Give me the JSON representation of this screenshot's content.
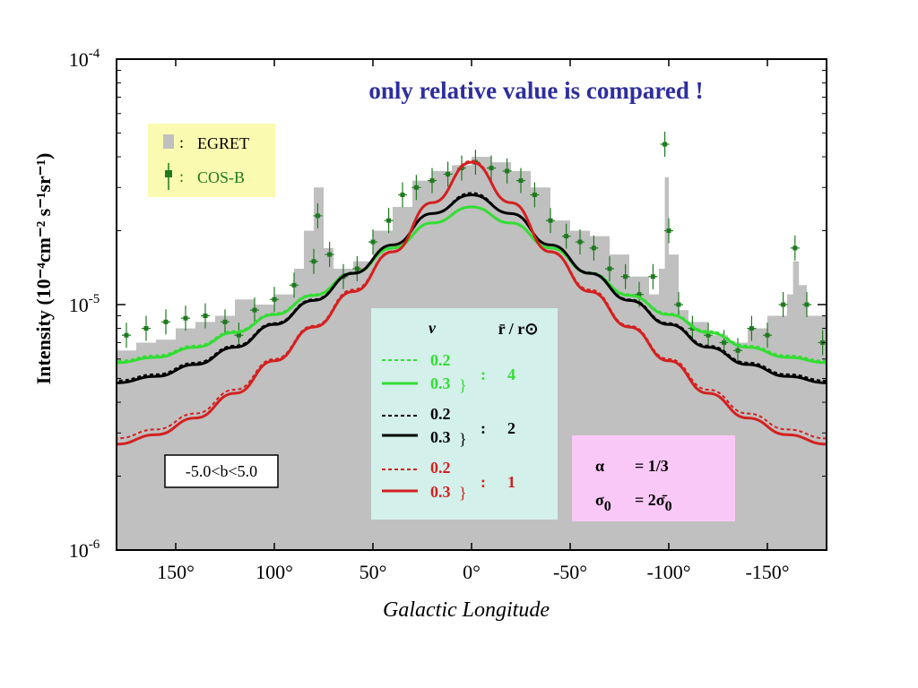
{
  "chart_data": {
    "type": "line",
    "title": "only relative value is compared !",
    "xlabel": "Galactic Longitude",
    "ylabel": "Intensity (10⁻⁴cm⁻² s⁻¹sr⁻¹)",
    "x_reversed": true,
    "xlim": [
      180,
      -180
    ],
    "ylim": [
      1e-06,
      0.0001
    ],
    "y_scale": "log",
    "x_ticks": [
      {
        "value": 150,
        "label": "150°"
      },
      {
        "value": 100,
        "label": "100°"
      },
      {
        "value": 50,
        "label": "50°"
      },
      {
        "value": 0,
        "label": "0°"
      },
      {
        "value": -50,
        "label": "-50°"
      },
      {
        "value": -100,
        "label": "-100°"
      },
      {
        "value": -150,
        "label": "-150°"
      }
    ],
    "y_ticks": [
      {
        "value": 0.0001,
        "base": "10",
        "exp": "-4"
      },
      {
        "value": 1e-05,
        "base": "10",
        "exp": "-5"
      },
      {
        "value": 1e-06,
        "base": "10",
        "exp": "-6"
      }
    ],
    "x": [
      -180,
      -160,
      -140,
      -120,
      -100,
      -80,
      -60,
      -40,
      -20,
      0,
      20,
      40,
      60,
      80,
      100,
      120,
      140,
      160,
      180
    ],
    "series": [
      {
        "group": "4",
        "nu": "0.2",
        "style": "dashed",
        "color": "#33dd33",
        "values": [
          5.9e-06,
          6.2e-06,
          6.8e-06,
          7.8e-06,
          9.2e-06,
          1.1e-05,
          1.35e-05,
          1.7e-05,
          2.15e-05,
          2.5e-05,
          2.15e-05,
          1.7e-05,
          1.35e-05,
          1.1e-05,
          9.2e-06,
          7.8e-06,
          6.8e-06,
          6.2e-06,
          5.9e-06
        ]
      },
      {
        "group": "4",
        "nu": "0.3",
        "style": "solid",
        "color": "#33dd33",
        "values": [
          5.8e-06,
          6.1e-06,
          6.7e-06,
          7.7e-06,
          9.1e-06,
          1.09e-05,
          1.34e-05,
          1.7e-05,
          2.15e-05,
          2.5e-05,
          2.15e-05,
          1.7e-05,
          1.34e-05,
          1.09e-05,
          9.1e-06,
          7.7e-06,
          6.7e-06,
          6.1e-06,
          5.8e-06
        ]
      },
      {
        "group": "2",
        "nu": "0.2",
        "style": "dashed",
        "color": "#000000",
        "values": [
          4.9e-06,
          5.2e-06,
          5.8e-06,
          6.8e-06,
          8.4e-06,
          1.05e-05,
          1.35e-05,
          1.75e-05,
          2.35e-05,
          2.85e-05,
          2.35e-05,
          1.75e-05,
          1.35e-05,
          1.05e-05,
          8.4e-06,
          6.8e-06,
          5.8e-06,
          5.2e-06,
          4.9e-06
        ]
      },
      {
        "group": "2",
        "nu": "0.3",
        "style": "solid",
        "color": "#000000",
        "values": [
          4.8e-06,
          5.1e-06,
          5.7e-06,
          6.7e-06,
          8.3e-06,
          1.04e-05,
          1.34e-05,
          1.75e-05,
          2.35e-05,
          2.8e-05,
          2.35e-05,
          1.75e-05,
          1.34e-05,
          1.04e-05,
          8.3e-06,
          6.7e-06,
          5.7e-06,
          5.1e-06,
          4.8e-06
        ]
      },
      {
        "group": "1",
        "nu": "0.2",
        "style": "dashed",
        "color": "#d42020",
        "values": [
          2.85e-06,
          3.1e-06,
          3.6e-06,
          4.5e-06,
          6e-06,
          8.2e-06,
          1.15e-05,
          1.65e-05,
          2.6e-05,
          3.85e-05,
          2.6e-05,
          1.65e-05,
          1.15e-05,
          8.2e-06,
          6e-06,
          4.5e-06,
          3.6e-06,
          3.1e-06,
          2.85e-06
        ]
      },
      {
        "group": "1",
        "nu": "0.3",
        "style": "solid",
        "color": "#d42020",
        "values": [
          2.7e-06,
          2.95e-06,
          3.45e-06,
          4.35e-06,
          5.9e-06,
          8.1e-06,
          1.13e-05,
          1.64e-05,
          2.6e-05,
          3.8e-05,
          2.6e-05,
          1.64e-05,
          1.13e-05,
          8.1e-06,
          5.9e-06,
          4.35e-06,
          3.45e-06,
          2.95e-06,
          2.7e-06
        ]
      }
    ],
    "egret": {
      "name": "EGRET",
      "color": "#c0c0c0",
      "x": [
        180,
        170,
        160,
        150,
        140,
        130,
        120,
        110,
        100,
        90,
        85,
        80,
        75,
        70,
        60,
        50,
        40,
        30,
        20,
        10,
        0,
        -10,
        -20,
        -30,
        -40,
        -50,
        -60,
        -70,
        -80,
        -90,
        -95,
        -98,
        -100,
        -105,
        -110,
        -120,
        -130,
        -140,
        -150,
        -160,
        -163,
        -166,
        -170,
        -180
      ],
      "values": [
        6.5e-06,
        7e-06,
        7.2e-06,
        8e-06,
        8.5e-06,
        9e-06,
        1.05e-05,
        1e-05,
        1.1e-05,
        1.4e-05,
        2e-05,
        3e-05,
        1.7e-05,
        1.4e-05,
        1.5e-05,
        2e-05,
        2.5e-05,
        3.2e-05,
        3.5e-05,
        3.7e-05,
        4e-05,
        3.8e-05,
        3.5e-05,
        3e-05,
        2.2e-05,
        2e-05,
        1.9e-05,
        1.6e-05,
        1.3e-05,
        1.1e-05,
        1.4e-05,
        3.3e-05,
        1.6e-05,
        9.5e-06,
        8.5e-06,
        7.5e-06,
        7e-06,
        8e-06,
        9e-06,
        1.1e-05,
        1.5e-05,
        1.2e-05,
        9e-06,
        6.5e-06
      ]
    },
    "cosb": {
      "name": "COS-B",
      "color": "#1f7a1f",
      "x": [
        175,
        165,
        155,
        145,
        135,
        125,
        118,
        110,
        100,
        90,
        80,
        78,
        72,
        65,
        58,
        50,
        42,
        35,
        28,
        20,
        12,
        5,
        -2,
        -10,
        -18,
        -25,
        -32,
        -40,
        -48,
        -55,
        -62,
        -70,
        -78,
        -85,
        -92,
        -98,
        -100,
        -105,
        -112,
        -120,
        -128,
        -135,
        -142,
        -150,
        -158,
        -164,
        -170,
        -178
      ],
      "values": [
        7.5e-06,
        8e-06,
        8.5e-06,
        8.8e-06,
        9e-06,
        8.5e-06,
        7.5e-06,
        9.5e-06,
        1.05e-05,
        1.2e-05,
        1.5e-05,
        2.3e-05,
        1.6e-05,
        1.3e-05,
        1.4e-05,
        1.8e-05,
        2.2e-05,
        2.8e-05,
        3e-05,
        3.2e-05,
        3.4e-05,
        3.6e-05,
        3.8e-05,
        3.6e-05,
        3.5e-05,
        3.2e-05,
        2.8e-05,
        2.2e-05,
        1.9e-05,
        1.8e-05,
        1.7e-05,
        1.4e-05,
        1.3e-05,
        1.1e-05,
        1.3e-05,
        4.5e-05,
        2e-05,
        1e-05,
        8e-06,
        7.5e-06,
        7e-06,
        6.5e-06,
        8e-06,
        7.5e-06,
        1e-05,
        1.7e-05,
        1e-05,
        7e-06
      ]
    }
  },
  "legend_data": {
    "egret": "EGRET",
    "cosb": "COS-B",
    "colon": ":"
  },
  "model_box": {
    "col_nu": "ν",
    "col_r": "r̄ / r⊙",
    "rows": [
      {
        "nu_a": "0.2",
        "nu_b": "0.3",
        "value": "4",
        "color": "#33dd33"
      },
      {
        "nu_a": "0.2",
        "nu_b": "0.3",
        "value": "2",
        "color": "#000000"
      },
      {
        "nu_a": "0.2",
        "nu_b": "0.3",
        "value": "1",
        "color": "#d42020"
      }
    ],
    "brace": "}",
    "colon": ":"
  },
  "param_box": {
    "alpha_symbol": "α",
    "alpha_value": "= 1/3",
    "sigma_symbol": "σ",
    "sigma_sub": "0",
    "sigma_value": "= 2σ̄",
    "sigma_value_sub": "0"
  },
  "latitude_box": "-5.0<b<5.0",
  "colors": {
    "plot_bg": "#ffffff",
    "legend_bg": "#fafab0",
    "model_box_bg": "#d3f0ea",
    "param_box_bg": "#f9c8f6"
  }
}
